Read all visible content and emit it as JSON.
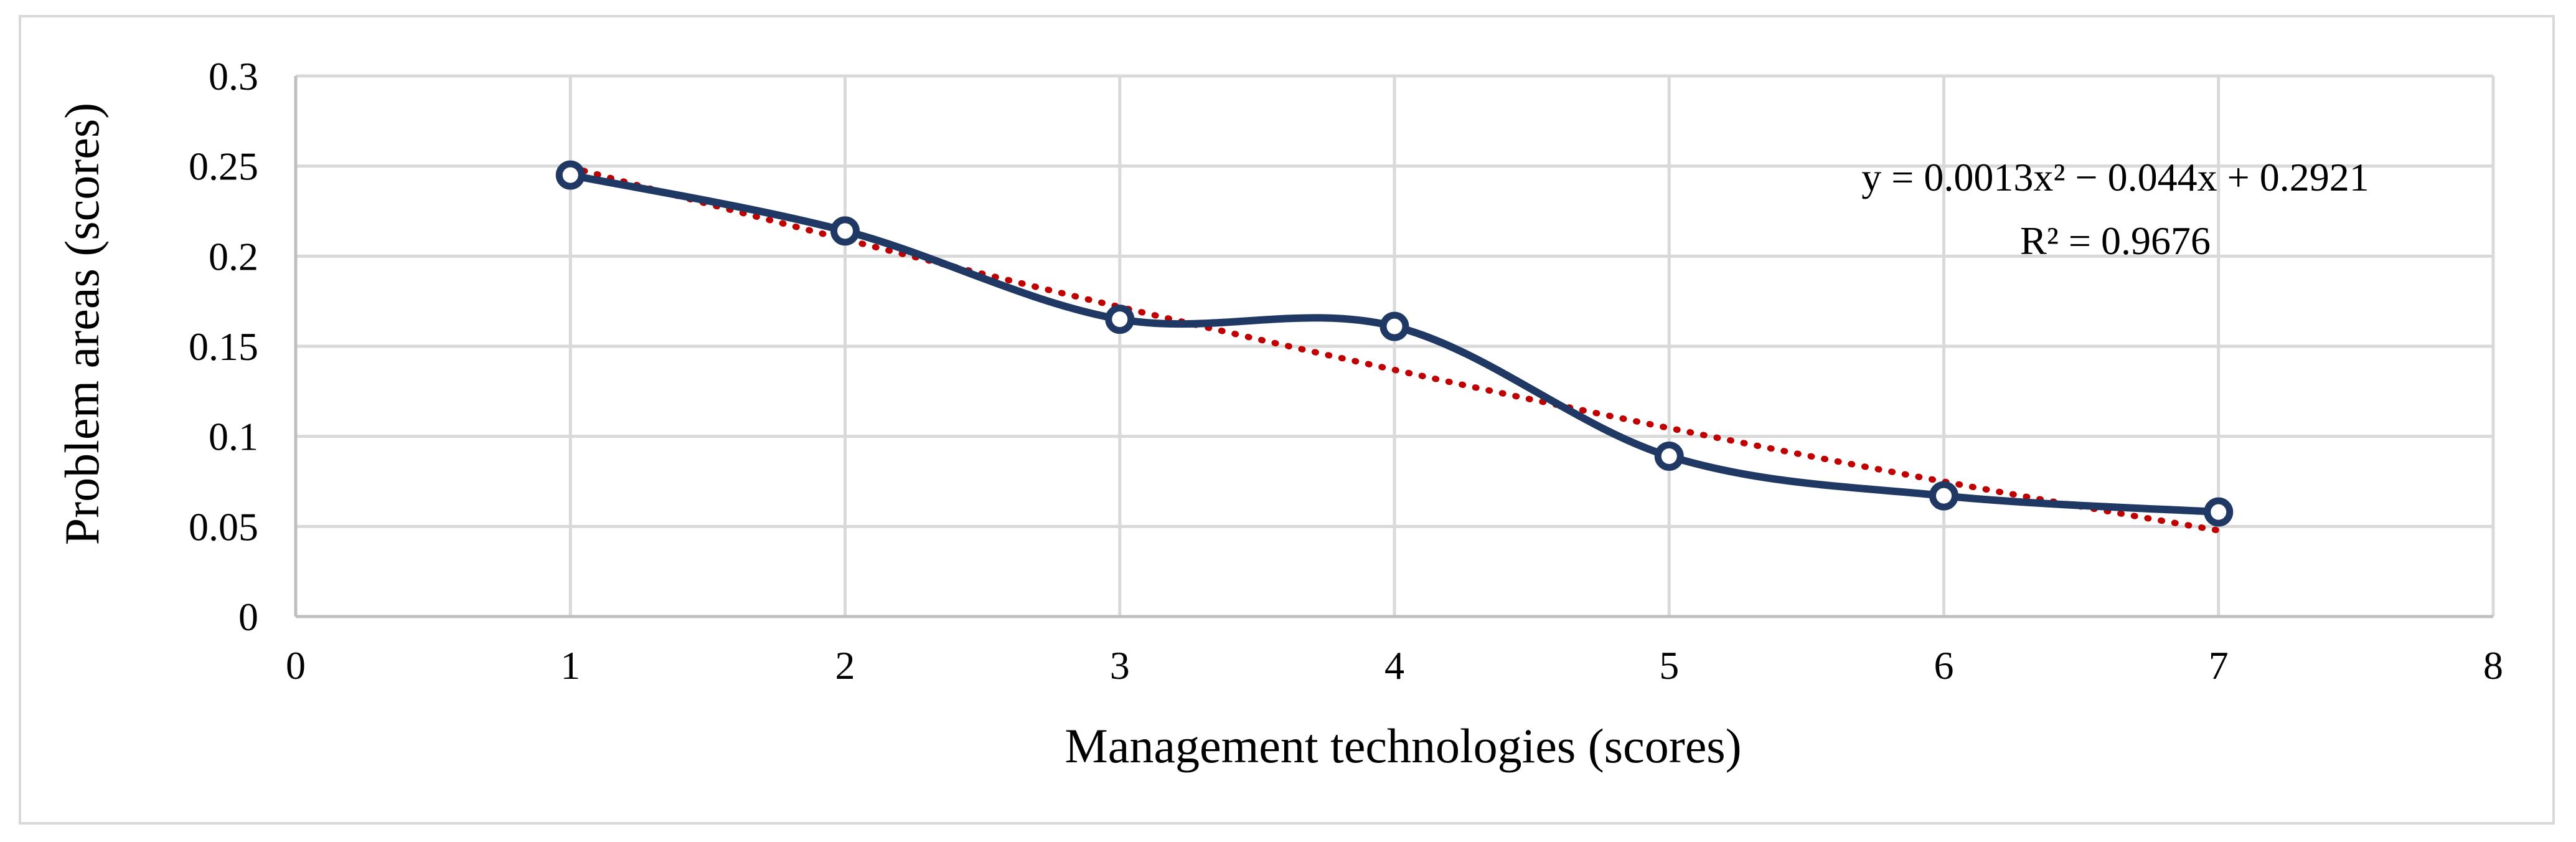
{
  "chart_data": {
    "type": "scatter",
    "xlabel": "Management technologies (scores)",
    "ylabel": "Problem areas (scores)",
    "xlim": [
      0,
      8
    ],
    "ylim": [
      0,
      0.3
    ],
    "x_ticks": [
      "0",
      "1",
      "2",
      "3",
      "4",
      "5",
      "6",
      "7",
      "8"
    ],
    "y_ticks": [
      "0",
      "0.05",
      "0.1",
      "0.15",
      "0.2",
      "0.25",
      "0.3"
    ],
    "grid": true,
    "series": [
      {
        "x": [
          1,
          2,
          3,
          4,
          5,
          6,
          7
        ],
        "y": [
          0.245,
          0.214,
          0.165,
          0.161,
          0.089,
          0.067,
          0.058
        ],
        "color": "#203864",
        "line": "smooth",
        "marker": "hollow-circle"
      }
    ],
    "trendline": {
      "type": "polynomial",
      "coefficients": [
        0.0013,
        -0.044,
        0.2921
      ],
      "color": "#c00000",
      "style": "dotted",
      "equation_text": "y = 0.0013x² − 0.044x + 0.2921",
      "r2_text": "R² = 0.9676"
    }
  }
}
